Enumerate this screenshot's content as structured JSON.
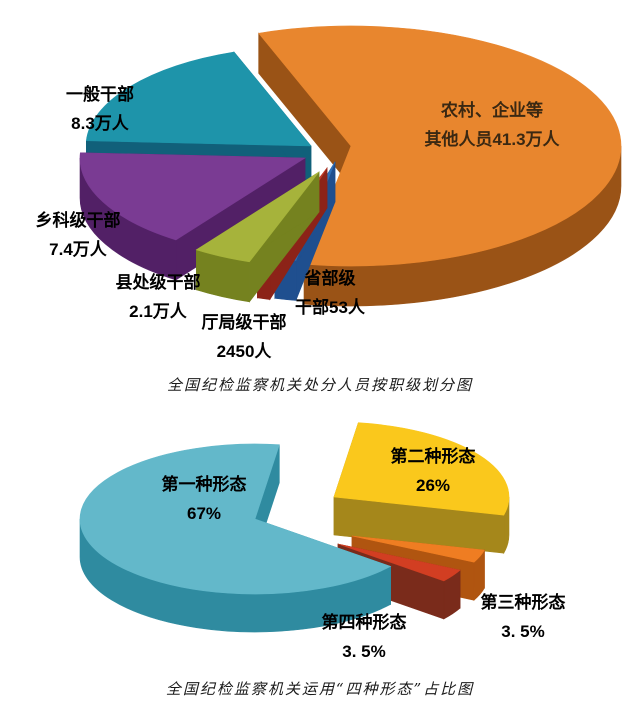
{
  "page": {
    "background": "#ffffff"
  },
  "chart_data": [
    {
      "type": "pie",
      "style": "3d-exploded",
      "title": "全国纪检监察机关处分人员按职级划分图",
      "legend_position": "none",
      "grid": false,
      "slices": [
        {
          "name": "农村、企业等其他人员",
          "value": 413000,
          "display_value": "41.3万人",
          "label_lines": [
            "农村、企业等",
            "其他人员41.3万人"
          ],
          "color": "#E8862E",
          "side_color": "#9A5316"
        },
        {
          "name": "一般干部",
          "value": 83000,
          "display_value": "8.3万人",
          "label_lines": [
            "一般干部",
            "8.3万人"
          ],
          "color": "#1E94AA",
          "side_color": "#11607A"
        },
        {
          "name": "乡科级干部",
          "value": 74000,
          "display_value": "7.4万人",
          "label_lines": [
            "乡科级干部",
            "7.4万人"
          ],
          "color": "#7A3B93",
          "side_color": "#522066"
        },
        {
          "name": "县处级干部",
          "value": 21000,
          "display_value": "2.1万人",
          "label_lines": [
            "县处级干部",
            "2.1万人"
          ],
          "color": "#A6B33B",
          "side_color": "#75821F"
        },
        {
          "name": "厅局级干部",
          "value": 2450,
          "display_value": "2450人",
          "label_lines": [
            "厅局级干部",
            "2450人"
          ],
          "color": "#C23A28",
          "side_color": "#8C2318"
        },
        {
          "name": "省部级干部",
          "value": 53,
          "display_value": "53人",
          "label_lines": [
            "省部级",
            "干部53人"
          ],
          "color": "#2E6FB7",
          "side_color": "#1F4F8F"
        }
      ]
    },
    {
      "type": "pie",
      "style": "3d-exploded",
      "title": "全国纪检监察机关运用“四种形态”占比图",
      "legend_position": "none",
      "grid": false,
      "slices": [
        {
          "name": "第一种形态",
          "value_pct": 67,
          "display_value": "67%",
          "label_lines": [
            "第一种形态",
            "67%"
          ],
          "color": "#63B8CA",
          "side_color": "#2F8BA0"
        },
        {
          "name": "第二种形态",
          "value_pct": 26,
          "display_value": "26%",
          "label_lines": [
            "第二种形态",
            "26%"
          ],
          "color": "#FAC81C",
          "side_color": "#A5871B"
        },
        {
          "name": "第三种形态",
          "value_pct": 3.5,
          "display_value": "3. 5%",
          "label_lines": [
            "第三种形态",
            "3. 5%"
          ],
          "color": "#EF7D22",
          "side_color": "#B05510"
        },
        {
          "name": "第四种形态",
          "value_pct": 3.5,
          "display_value": "3. 5%",
          "label_lines": [
            "第四种形态",
            "3. 5%"
          ],
          "color": "#D23E22",
          "side_color": "#7A2B1B"
        }
      ]
    }
  ]
}
